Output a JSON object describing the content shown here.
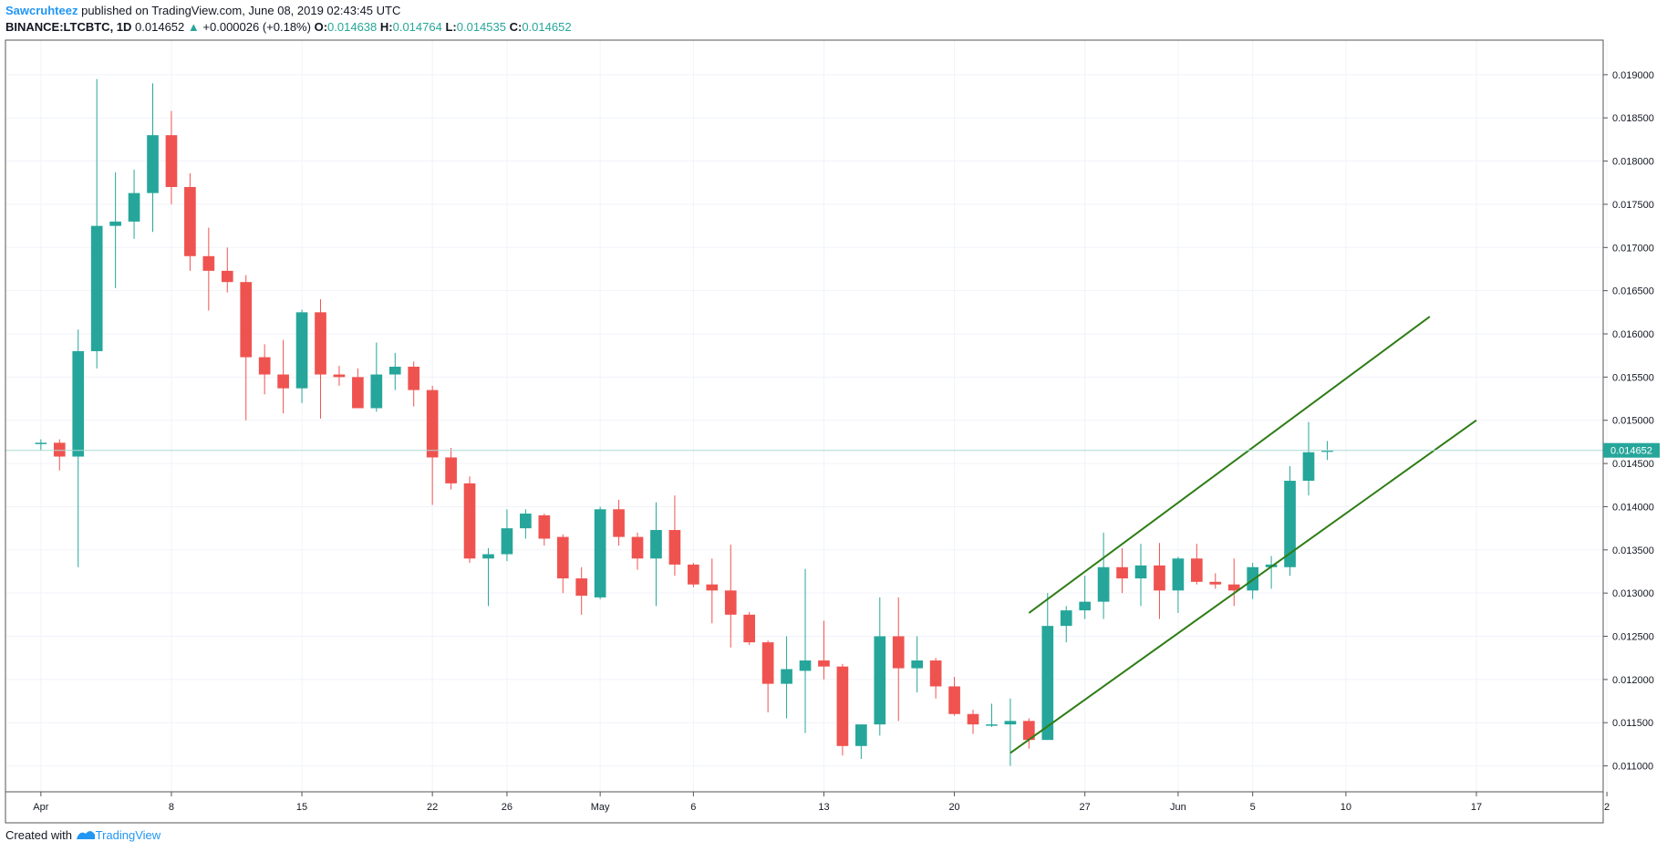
{
  "header": {
    "author": "Sawcruhteez",
    "published_text": " published on TradingView.com, June 08, 2019 02:43:45 UTC"
  },
  "symbol_row": {
    "symbol": "BINANCE:LTCBTC, 1D",
    "last": "0.014652",
    "arrow": "▲",
    "change": "+0.000026 (+0.18%)",
    "o_label": "O:",
    "o_value": "0.014638",
    "h_label": "H:",
    "h_value": "0.014764",
    "l_label": "L:",
    "l_value": "0.014535",
    "c_label": "C:",
    "c_value": "0.014652"
  },
  "footer": {
    "created_with": "Created with",
    "brand": "TradingView"
  },
  "colors": {
    "up": "#26a69a",
    "down": "#ef5350",
    "channel": "#2e7d15",
    "grid": "#f0f3fa",
    "axis": "#555555",
    "price_label_bg": "#26a69a"
  },
  "chart_data": {
    "type": "candlestick",
    "ylim": [
      0.0107,
      0.0194
    ],
    "y_ticks": [
      "0.011000",
      "0.011500",
      "0.012000",
      "0.012500",
      "0.013000",
      "0.013500",
      "0.014000",
      "0.014500",
      "0.015000",
      "0.015500",
      "0.016000",
      "0.016500",
      "0.017000",
      "0.017500",
      "0.018000",
      "0.018500",
      "0.019000"
    ],
    "x_ticks": [
      {
        "label": "Apr",
        "day": 0
      },
      {
        "label": "8",
        "day": 7
      },
      {
        "label": "15",
        "day": 14
      },
      {
        "label": "22",
        "day": 21
      },
      {
        "label": "26",
        "day": 25
      },
      {
        "label": "May",
        "day": 30
      },
      {
        "label": "6",
        "day": 35
      },
      {
        "label": "13",
        "day": 42
      },
      {
        "label": "20",
        "day": 49
      },
      {
        "label": "27",
        "day": 56
      },
      {
        "label": "Jun",
        "day": 61
      },
      {
        "label": "5",
        "day": 65
      },
      {
        "label": "10",
        "day": 70
      },
      {
        "label": "17",
        "day": 77
      },
      {
        "label": "2",
        "day": 84
      }
    ],
    "x_range_days": [
      -1.9,
      83.8
    ],
    "last_price": "0.014652",
    "candles": [
      [
        0.01473,
        0.01478,
        0.01465,
        0.01474
      ],
      [
        0.01474,
        0.01478,
        0.01442,
        0.01458
      ],
      [
        0.01458,
        0.01605,
        0.0133,
        0.0158
      ],
      [
        0.0158,
        0.01895,
        0.0156,
        0.01725
      ],
      [
        0.01725,
        0.01787,
        0.01653,
        0.0173
      ],
      [
        0.0173,
        0.0179,
        0.0171,
        0.01763
      ],
      [
        0.01763,
        0.0189,
        0.01718,
        0.0183
      ],
      [
        0.0183,
        0.01858,
        0.0175,
        0.0177
      ],
      [
        0.0177,
        0.01786,
        0.01673,
        0.0169
      ],
      [
        0.0169,
        0.01723,
        0.01627,
        0.01673
      ],
      [
        0.01673,
        0.017,
        0.01648,
        0.0166
      ],
      [
        0.0166,
        0.01668,
        0.015,
        0.01573
      ],
      [
        0.01573,
        0.01588,
        0.0153,
        0.01553
      ],
      [
        0.01553,
        0.01593,
        0.01508,
        0.01537
      ],
      [
        0.01537,
        0.01628,
        0.0152,
        0.01625
      ],
      [
        0.01625,
        0.0164,
        0.01502,
        0.01553
      ],
      [
        0.01553,
        0.01563,
        0.0154,
        0.0155
      ],
      [
        0.0155,
        0.0156,
        0.01514,
        0.01514
      ],
      [
        0.01514,
        0.0159,
        0.0151,
        0.01553
      ],
      [
        0.01553,
        0.01578,
        0.01535,
        0.01562
      ],
      [
        0.01562,
        0.01568,
        0.01516,
        0.01535
      ],
      [
        0.01535,
        0.0154,
        0.01402,
        0.01457
      ],
      [
        0.01457,
        0.01468,
        0.0142,
        0.01427
      ],
      [
        0.01427,
        0.01435,
        0.01335,
        0.0134
      ],
      [
        0.0134,
        0.01352,
        0.01285,
        0.01345
      ],
      [
        0.01345,
        0.01397,
        0.01337,
        0.01375
      ],
      [
        0.01375,
        0.01397,
        0.01363,
        0.01392
      ],
      [
        0.0139,
        0.01392,
        0.01355,
        0.01363
      ],
      [
        0.01365,
        0.01368,
        0.013,
        0.01317
      ],
      [
        0.01317,
        0.0133,
        0.01275,
        0.01297
      ],
      [
        0.01295,
        0.014,
        0.01293,
        0.01397
      ],
      [
        0.01397,
        0.01408,
        0.01355,
        0.01365
      ],
      [
        0.01365,
        0.0137,
        0.01327,
        0.0134
      ],
      [
        0.0134,
        0.01405,
        0.01285,
        0.01373
      ],
      [
        0.01373,
        0.01413,
        0.0132,
        0.01333
      ],
      [
        0.01333,
        0.01335,
        0.01307,
        0.0131
      ],
      [
        0.0131,
        0.0134,
        0.01265,
        0.01303
      ],
      [
        0.01303,
        0.01356,
        0.01237,
        0.01275
      ],
      [
        0.01275,
        0.01278,
        0.0124,
        0.01243
      ],
      [
        0.01243,
        0.01245,
        0.01162,
        0.01195
      ],
      [
        0.01195,
        0.0125,
        0.01155,
        0.01212
      ],
      [
        0.0121,
        0.01328,
        0.01138,
        0.01222
      ],
      [
        0.01222,
        0.01268,
        0.012,
        0.01215
      ],
      [
        0.01215,
        0.01218,
        0.01112,
        0.01123
      ],
      [
        0.01123,
        0.01148,
        0.01108,
        0.01148
      ],
      [
        0.01148,
        0.01295,
        0.01135,
        0.0125
      ],
      [
        0.0125,
        0.01295,
        0.01152,
        0.01213
      ],
      [
        0.01213,
        0.0125,
        0.01185,
        0.01222
      ],
      [
        0.01222,
        0.01225,
        0.01178,
        0.01192
      ],
      [
        0.01192,
        0.01203,
        0.01158,
        0.0116
      ],
      [
        0.0116,
        0.01165,
        0.01137,
        0.01148
      ],
      [
        0.01148,
        0.01172,
        0.01145,
        0.01148
      ],
      [
        0.01148,
        0.01178,
        0.011,
        0.01152
      ],
      [
        0.01152,
        0.01155,
        0.0112,
        0.0113
      ],
      [
        0.0113,
        0.013,
        0.0113,
        0.01262
      ],
      [
        0.01262,
        0.01285,
        0.01243,
        0.0128
      ],
      [
        0.0128,
        0.0132,
        0.0127,
        0.0129
      ],
      [
        0.0129,
        0.0137,
        0.0127,
        0.0133
      ],
      [
        0.0133,
        0.01352,
        0.013,
        0.01317
      ],
      [
        0.01317,
        0.01357,
        0.01285,
        0.01332
      ],
      [
        0.01332,
        0.01358,
        0.0127,
        0.01303
      ],
      [
        0.01303,
        0.01342,
        0.01277,
        0.0134
      ],
      [
        0.0134,
        0.01357,
        0.0131,
        0.01313
      ],
      [
        0.01313,
        0.01323,
        0.01305,
        0.0131
      ],
      [
        0.0131,
        0.0134,
        0.01285,
        0.01303
      ],
      [
        0.01303,
        0.01335,
        0.01293,
        0.0133
      ],
      [
        0.0133,
        0.01343,
        0.01305,
        0.01333
      ],
      [
        0.0133,
        0.01447,
        0.0132,
        0.0143
      ],
      [
        0.0143,
        0.01498,
        0.01413,
        0.01463
      ],
      [
        0.01464,
        0.01476,
        0.01454,
        0.01465
      ]
    ],
    "channel_lines": [
      {
        "from": {
          "day": 53.0,
          "price": 0.01277
        },
        "to": {
          "day": 74.5,
          "price": 0.0162
        }
      },
      {
        "from": {
          "day": 52.0,
          "price": 0.01115
        },
        "to": {
          "day": 77.0,
          "price": 0.015
        }
      }
    ]
  }
}
